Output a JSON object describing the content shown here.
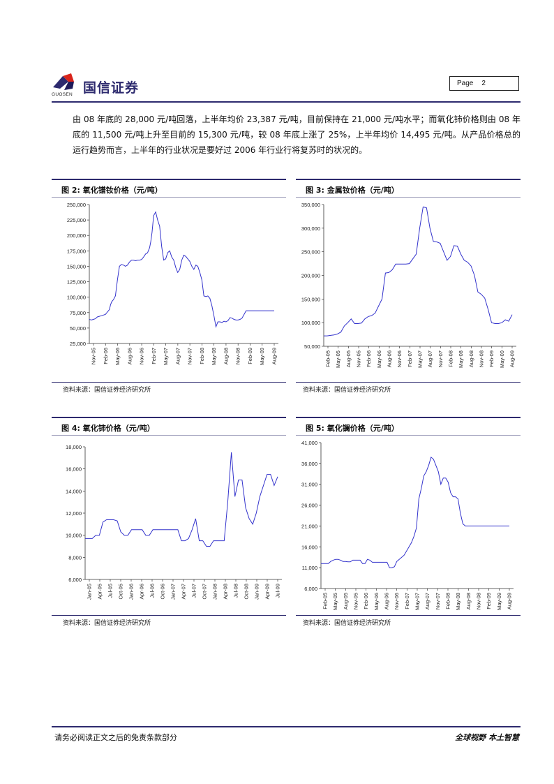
{
  "header": {
    "brand_cn": "国信证券",
    "brand_en": "GUOSEN",
    "page_label": "Page",
    "page_number": "2",
    "colors": {
      "brand_blue": "#2d2a6e",
      "brand_red": "#d9241b",
      "line_blue": "#3333cc"
    }
  },
  "body": {
    "paragraph": "由 08 年底的 28,000 元/吨回落，上半年均价 23,387 元/吨，目前保持在 21,000 元/吨水平；而氧化铈价格则由 08 年底的 11,500 元/吨上升至目前的 15,300 元/吨，较 08 年底上涨了 25%，上半年均价 14,495 元/吨。从产品价格总的运行趋势而言，上半年的行业状况是要好过 2006 年行业行将复苏时的状况的。"
  },
  "figures": [
    {
      "title": "图 2:  氧化镨钕价格（元/吨）",
      "source": "资料来源：国信证券经济研究所"
    },
    {
      "title": "图 3:  金属钕价格（元/吨）",
      "source": "资料来源：国信证券经济研究所"
    },
    {
      "title": "图 4:  氧化铈价格（元/吨）",
      "source": "资料来源：国信证券经济研究所"
    },
    {
      "title": "图 5:  氧化镧价格（元/吨）",
      "source": "资料来源：国信证券经济研究所"
    }
  ],
  "footer": {
    "left": "请务必阅读正文之后的免责条款部分",
    "right": "全球视野  本土智慧"
  },
  "chart_data": [
    {
      "type": "line",
      "ylim": [
        25000,
        250000
      ],
      "yticks": [
        25000,
        50000,
        75000,
        100000,
        125000,
        150000,
        175000,
        200000,
        225000,
        250000
      ],
      "ytick_labels": [
        "25,000",
        "50,000",
        "75,000",
        "100,000",
        "125,000",
        "150,000",
        "175,000",
        "200,000",
        "225,000",
        "250,000"
      ],
      "xticks": [
        "Nov-05",
        "Feb-06",
        "May-06",
        "Aug-06",
        "Nov-06",
        "Feb-07",
        "May-07",
        "Aug-07",
        "Nov-07",
        "Feb-08",
        "May-08",
        "Aug-08",
        "Nov-08",
        "Feb-09",
        "May-09",
        "Aug-09"
      ],
      "color": "#3333cc",
      "x": [
        0,
        0.5,
        1,
        1.5,
        2,
        2.5,
        3,
        3.5,
        4,
        4.5,
        5,
        5.3,
        5.6,
        6,
        6.5,
        7,
        7.5,
        8,
        8.5,
        9,
        9.5,
        10,
        10.5,
        11,
        11.5,
        12,
        12.5,
        13,
        13.5,
        14,
        14.5,
        15,
        15.3,
        15.6,
        16,
        16.5,
        17,
        17.5,
        18,
        18.5,
        19,
        19.5,
        20,
        20.5,
        21,
        21.5,
        22,
        22.5,
        23,
        23.5,
        24,
        24.5,
        25,
        25.5,
        26,
        26.5,
        27,
        27.5,
        28,
        28.5,
        29,
        29.5,
        30,
        30.5,
        31,
        31.5,
        32,
        32.5,
        33,
        33.5,
        34,
        34.5,
        35,
        35.5,
        36,
        36.5,
        37,
        37.5,
        38,
        38.5,
        39,
        39.5,
        40,
        40.5,
        41,
        41.5,
        42,
        42.5,
        43,
        43.5,
        44,
        44.5,
        45,
        45.5,
        46
      ],
      "y": [
        64000,
        63000,
        64000,
        65000,
        68000,
        69000,
        70000,
        71000,
        72000,
        76000,
        80000,
        88000,
        93000,
        96000,
        102000,
        128000,
        150000,
        153000,
        152000,
        150000,
        152000,
        157000,
        160000,
        160000,
        159000,
        160000,
        160000,
        161000,
        165000,
        170000,
        172000,
        180000,
        190000,
        205000,
        232000,
        238000,
        225000,
        215000,
        182000,
        160000,
        162000,
        172000,
        175000,
        165000,
        160000,
        148000,
        140000,
        145000,
        160000,
        168000,
        166000,
        162000,
        158000,
        150000,
        145000,
        152000,
        150000,
        140000,
        128000,
        102000,
        101000,
        102000,
        98000,
        86000,
        70000,
        52000,
        60000,
        60000,
        59000,
        61000,
        60000,
        62000,
        67000,
        66000,
        64000,
        63000,
        63000,
        64000,
        66000,
        72000,
        78000,
        78000,
        78000,
        78000,
        78000,
        78000,
        78000,
        78000,
        78000,
        78000,
        78000,
        78000,
        78000,
        78000,
        78000
      ]
    },
    {
      "type": "line",
      "ylim": [
        50000,
        350000
      ],
      "yticks": [
        50000,
        100000,
        150000,
        200000,
        250000,
        300000,
        350000
      ],
      "ytick_labels": [
        "50,000",
        "100,000",
        "150,000",
        "200,000",
        "250,000",
        "300,000",
        "350,000"
      ],
      "xticks": [
        "Feb-05",
        "May-05",
        "Aug-05",
        "Nov-05",
        "Feb-06",
        "May-06",
        "Aug-06",
        "Nov-06",
        "Feb-07",
        "May-07",
        "Aug-07",
        "Nov-07",
        "Feb-08",
        "May-08",
        "Aug-08",
        "Nov-08",
        "Feb-09",
        "May-09",
        "Aug-09"
      ],
      "color": "#3333cc",
      "x": [
        0,
        1,
        2,
        3,
        4,
        5,
        6,
        7,
        8,
        9,
        10,
        11,
        12,
        13,
        14,
        15,
        16,
        17,
        18,
        19,
        20,
        21,
        22,
        23,
        24,
        25,
        26,
        27,
        28,
        29,
        30,
        31,
        32,
        33,
        34,
        35,
        36,
        37,
        38,
        39,
        40,
        41,
        42,
        43,
        44,
        45,
        46,
        47,
        48,
        49,
        50,
        51,
        52,
        53,
        54,
        55
      ],
      "y": [
        72000,
        72000,
        73000,
        74000,
        76000,
        80000,
        93000,
        100000,
        108000,
        98000,
        98000,
        99000,
        108000,
        113000,
        115000,
        120000,
        135000,
        150000,
        205000,
        206000,
        212000,
        224000,
        224000,
        224000,
        224000,
        225000,
        235000,
        245000,
        300000,
        345000,
        343000,
        300000,
        272000,
        271000,
        268000,
        250000,
        232000,
        240000,
        263000,
        262000,
        245000,
        232000,
        228000,
        220000,
        200000,
        165000,
        160000,
        152000,
        128000,
        100000,
        98000,
        98000,
        100000,
        106000,
        103000,
        117000
      ]
    },
    {
      "type": "line",
      "ylim": [
        6000,
        18000
      ],
      "yticks": [
        6000,
        8000,
        10000,
        12000,
        14000,
        16000,
        18000
      ],
      "ytick_labels": [
        "6,000",
        "8,000",
        "10,000",
        "12,000",
        "14,000",
        "16,000",
        "18,000"
      ],
      "xticks": [
        "Jan-05",
        "Apr-05",
        "Jul-05",
        "Oct-05",
        "Jan-06",
        "Apr-06",
        "Jul-06",
        "Oct-06",
        "Jan-07",
        "Apr-07",
        "Jul-07",
        "Oct-07",
        "Jan-08",
        "Apr-08",
        "Jul-08",
        "Oct-08",
        "Jan-09",
        "Apr-09",
        "Jul-09"
      ],
      "color": "#3333cc",
      "x": [
        0,
        2,
        3,
        4,
        5,
        6,
        7,
        8,
        9,
        10,
        11,
        12,
        13,
        14,
        15,
        16,
        17,
        18,
        19,
        20,
        21,
        22,
        23,
        24,
        25,
        26,
        27,
        28,
        29,
        30,
        31,
        32,
        33,
        34,
        35,
        36,
        37,
        38,
        39,
        40,
        41,
        42,
        43,
        44,
        45,
        46,
        47,
        48,
        49,
        50,
        51,
        52,
        53,
        54
      ],
      "y": [
        9700,
        9700,
        10000,
        10000,
        11200,
        11400,
        11400,
        11400,
        11300,
        10300,
        10000,
        10000,
        10500,
        10500,
        10500,
        10500,
        10000,
        10000,
        10500,
        10500,
        10500,
        10500,
        10500,
        10500,
        10500,
        10500,
        9500,
        9500,
        9700,
        10500,
        11500,
        9500,
        9500,
        9000,
        9000,
        9500,
        9500,
        9500,
        9500,
        13000,
        17500,
        13500,
        15000,
        15000,
        12500,
        11500,
        11000,
        12000,
        13500,
        14500,
        15500,
        15500,
        14500,
        15300
      ]
    },
    {
      "type": "line",
      "ylim": [
        6000,
        41000
      ],
      "yticks": [
        6000,
        11000,
        16000,
        21000,
        26000,
        31000,
        36000,
        41000
      ],
      "ytick_labels": [
        "6,000",
        "11,000",
        "16,000",
        "21,000",
        "26,000",
        "31,000",
        "36,000",
        "41,000"
      ],
      "xticks": [
        "Feb-05",
        "May-05",
        "Aug-05",
        "Nov-05",
        "Feb-06",
        "May-06",
        "Aug-06",
        "Nov-06",
        "Feb-07",
        "May-07",
        "Aug-07",
        "Nov-07",
        "Feb-08",
        "May-08",
        "Aug-08",
        "Nov-08",
        "Feb-09",
        "May-09",
        "Aug-09"
      ],
      "color": "#3333cc",
      "x": [
        0,
        2,
        4,
        6,
        8,
        10,
        12,
        14,
        16,
        18,
        20,
        22,
        24,
        26,
        28,
        30,
        32,
        34,
        36,
        38,
        40,
        42,
        44,
        46,
        48,
        50,
        52,
        54,
        56,
        58,
        60,
        62,
        64,
        66,
        68,
        70,
        72,
        74,
        76,
        78,
        80,
        82,
        84,
        86,
        88,
        90,
        92,
        94,
        96,
        98,
        100,
        102,
        104,
        106,
        108,
        110,
        112,
        114,
        116,
        118,
        120,
        122,
        124,
        126,
        128,
        130,
        132,
        134,
        136,
        138,
        140,
        142,
        144,
        146,
        148,
        150,
        152,
        154
      ],
      "y": [
        12000,
        12000,
        12000,
        12000,
        12500,
        12800,
        13000,
        13000,
        12800,
        12500,
        12500,
        12400,
        12400,
        12800,
        12800,
        12800,
        12800,
        12000,
        12000,
        13000,
        12800,
        12300,
        12300,
        12300,
        12300,
        12300,
        12300,
        12300,
        11000,
        11000,
        11200,
        12500,
        13000,
        13500,
        14000,
        15000,
        16000,
        17000,
        18500,
        20500,
        27500,
        30000,
        33000,
        34000,
        35500,
        37500,
        37000,
        35500,
        34000,
        31000,
        32500,
        32500,
        31500,
        29000,
        28000,
        28000,
        27500,
        24000,
        21500,
        21000,
        21000,
        21000,
        21000,
        21000,
        21000,
        21000,
        21000,
        21000,
        21000,
        21000,
        21000,
        21000,
        21000,
        21000,
        21000,
        21000,
        21000,
        21000
      ]
    }
  ]
}
